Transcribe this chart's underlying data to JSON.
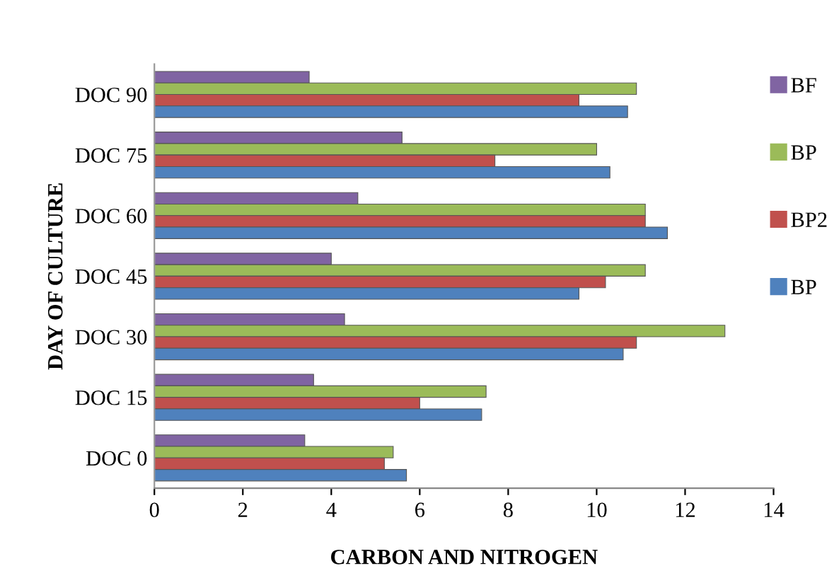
{
  "chart_data": {
    "type": "bar",
    "orientation": "horizontal",
    "xlabel": "CARBON AND NITROGEN",
    "ylabel": "DAY OF CULTURE",
    "categories": [
      "DOC 90",
      "DOC 75",
      "DOC 60",
      "DOC 45",
      "DOC 30",
      "DOC 15",
      "DOC 0"
    ],
    "series": [
      {
        "name": "BF",
        "color": "#8064a2",
        "values": [
          3.5,
          5.6,
          4.6,
          4.0,
          4.3,
          3.6,
          3.4
        ]
      },
      {
        "name": "BP",
        "color": "#9bbb59",
        "values": [
          10.9,
          10.0,
          11.1,
          11.1,
          12.9,
          7.5,
          5.4
        ]
      },
      {
        "name": "BP2",
        "color": "#c0504d",
        "values": [
          9.6,
          7.7,
          11.1,
          10.2,
          10.9,
          6.0,
          5.2
        ]
      },
      {
        "name": "BP",
        "color": "#4f81bd",
        "values": [
          10.7,
          10.3,
          11.6,
          9.6,
          10.6,
          7.4,
          5.7
        ]
      }
    ],
    "xlim": [
      0,
      14
    ],
    "xticks": [
      0,
      2,
      4,
      6,
      8,
      10,
      12,
      14
    ],
    "grid": false,
    "legend": "right"
  }
}
